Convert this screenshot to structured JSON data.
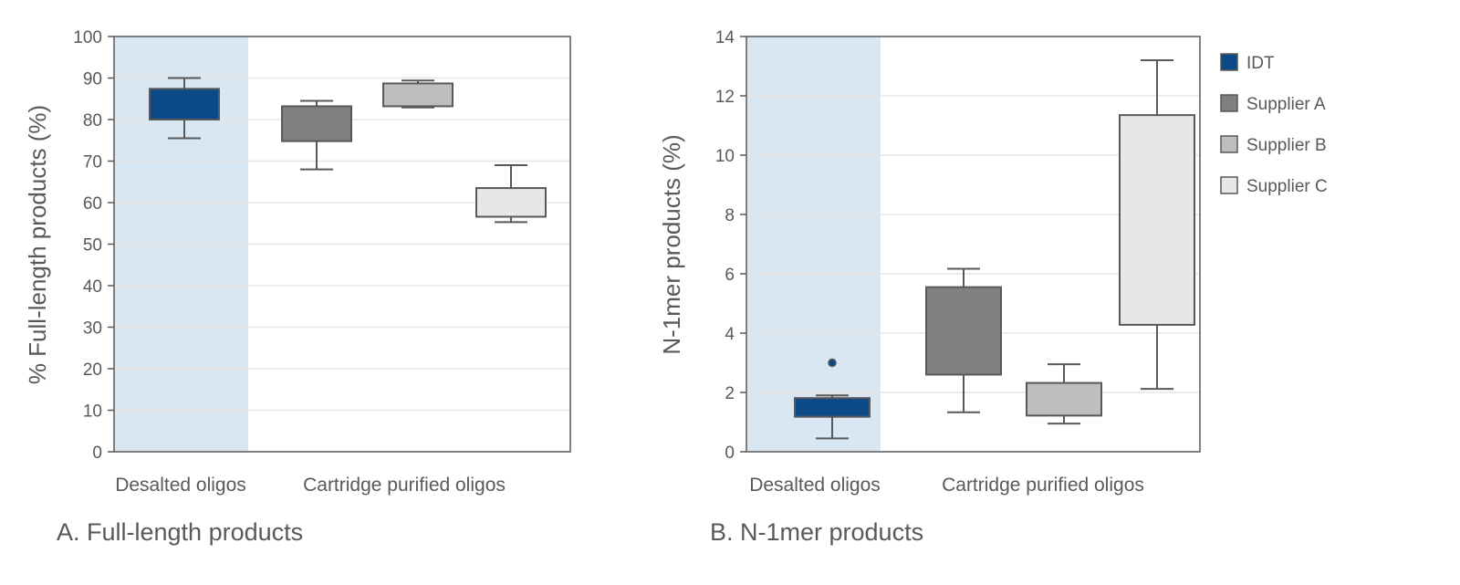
{
  "colors": {
    "IDT": "#0b4a87",
    "Supplier A": "#808083",
    "Supplier B": "#bdbec0",
    "Supplier C": "#e6e7e8",
    "edge": "#58595b",
    "shade": "#d8e7f1",
    "grid": "#e6e6e6"
  },
  "legend": [
    "IDT",
    "Supplier A",
    "Supplier B",
    "Supplier C"
  ],
  "chart_data": [
    {
      "type": "box",
      "title": "A. Full-length products",
      "ylabel": "% Full-length products (%)",
      "ylim": [
        0,
        100
      ],
      "yticks": [
        0,
        10,
        20,
        30,
        40,
        50,
        60,
        70,
        80,
        90,
        100
      ],
      "grid": true,
      "group_labels": [
        "Desalted oligos",
        "Cartridge purified oligos"
      ],
      "highlight_group": "Desalted oligos",
      "series": [
        {
          "name": "IDT",
          "group": "Desalted oligos",
          "whisker_low": 75.5,
          "q1": 80,
          "q3": 87.4,
          "whisker_high": 90,
          "outliers": []
        },
        {
          "name": "Supplier A",
          "group": "Cartridge purified oligos",
          "whisker_low": 68,
          "q1": 74.8,
          "q3": 83.2,
          "whisker_high": 84.5,
          "outliers": []
        },
        {
          "name": "Supplier B",
          "group": "Cartridge purified oligos",
          "whisker_low": 82.9,
          "q1": 83.2,
          "q3": 88.7,
          "whisker_high": 89.4,
          "outliers": []
        },
        {
          "name": "Supplier C",
          "group": "Cartridge purified oligos",
          "whisker_low": 55.3,
          "q1": 56.6,
          "q3": 63.5,
          "whisker_high": 69,
          "outliers": []
        }
      ]
    },
    {
      "type": "box",
      "title": "B. N-1mer products",
      "ylabel": "N-1mer products (%)",
      "ylim": [
        0,
        14
      ],
      "yticks": [
        0,
        2,
        4,
        6,
        8,
        10,
        12,
        14
      ],
      "grid": true,
      "legend_position": "right",
      "group_labels": [
        "Desalted oligos",
        "Cartridge purified oligos"
      ],
      "highlight_group": "Desalted oligos",
      "series": [
        {
          "name": "IDT",
          "group": "Desalted oligos",
          "whisker_low": 0.45,
          "q1": 1.18,
          "q3": 1.81,
          "whisker_high": 1.9,
          "outliers": [
            3.0
          ]
        },
        {
          "name": "Supplier A",
          "group": "Cartridge purified oligos",
          "whisker_low": 1.33,
          "q1": 2.6,
          "q3": 5.55,
          "whisker_high": 6.17,
          "outliers": []
        },
        {
          "name": "Supplier B",
          "group": "Cartridge purified oligos",
          "whisker_low": 0.95,
          "q1": 1.22,
          "q3": 2.32,
          "whisker_high": 2.95,
          "outliers": []
        },
        {
          "name": "Supplier C",
          "group": "Cartridge purified oligos",
          "whisker_low": 2.12,
          "q1": 4.28,
          "q3": 11.35,
          "whisker_high": 13.2,
          "outliers": []
        }
      ]
    }
  ]
}
